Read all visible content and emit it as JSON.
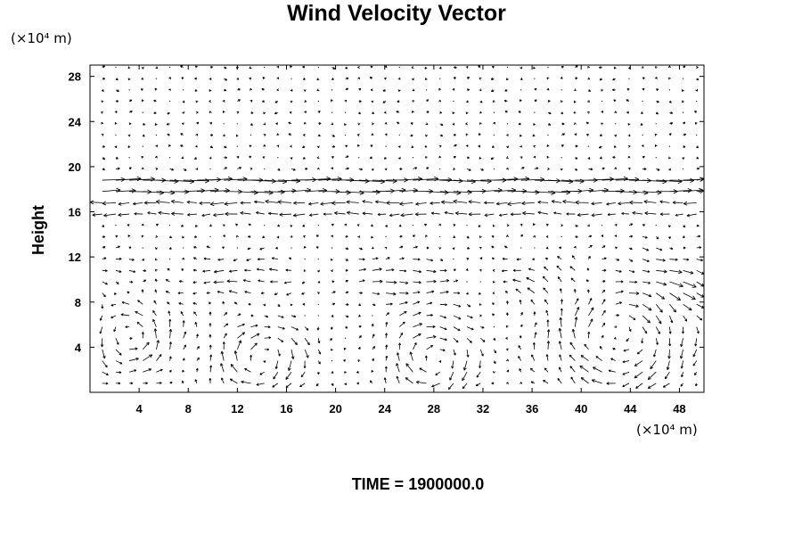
{
  "chart_data": {
    "type": "vector-field",
    "title": "Wind Velocity Vector",
    "ylabel": "Height",
    "x_unit_label": "(×10⁴ m)",
    "y_unit_label": "(×10⁴ m)",
    "xlim": [
      0,
      50
    ],
    "ylim": [
      0,
      29
    ],
    "xticks": [
      4,
      8,
      12,
      16,
      20,
      24,
      28,
      32,
      36,
      40,
      44,
      48
    ],
    "yticks": [
      4,
      8,
      12,
      16,
      20,
      24,
      28
    ],
    "grid": false,
    "annotation": "TIME = 1900000.0",
    "features": {
      "eastward_jet_heights": [
        19,
        18
      ],
      "westward_layer_heights": [
        17,
        16
      ],
      "vortices": [
        {
          "center": [
            3,
            5
          ],
          "radius": 3,
          "sense": "counterclockwise"
        },
        {
          "center": [
            14,
            3
          ],
          "radius": 3,
          "sense": "clockwise"
        },
        {
          "center": [
            28,
            3
          ],
          "radius": 3,
          "sense": "clockwise"
        },
        {
          "center": [
            43,
            5
          ],
          "radius": 5,
          "sense": "clockwise"
        }
      ]
    },
    "stroke_color": "#000000"
  }
}
